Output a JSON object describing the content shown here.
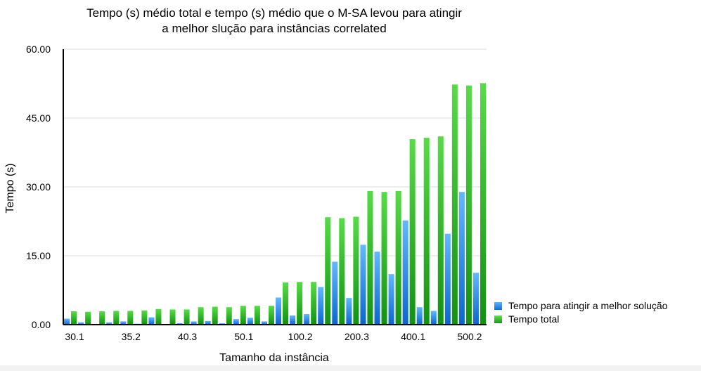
{
  "chart_data": {
    "type": "bar",
    "title_lines": [
      "Tempo (s) médio total e tempo (s) médio que o M-SA levou para atingir",
      "a melhor slução para instâncias correlated"
    ],
    "xlabel": "Tamanho da instância",
    "ylabel": "Tempo (s)",
    "ylim": [
      0,
      60
    ],
    "yticks": [
      "0.00",
      "15.00",
      "30.00",
      "45.00",
      "60.00"
    ],
    "xtick_labels": [
      {
        "label": "30.1",
        "index": 0
      },
      {
        "label": "35.2",
        "index": 4
      },
      {
        "label": "40.3",
        "index": 8
      },
      {
        "label": "50.1",
        "index": 12
      },
      {
        "label": "100.2",
        "index": 16
      },
      {
        "label": "200.3",
        "index": 20
      },
      {
        "label": "400.1",
        "index": 24
      },
      {
        "label": "500.2",
        "index": 28
      }
    ],
    "n_categories": 30,
    "grid": true,
    "legend_position": "bottom-right",
    "series": [
      {
        "name": "Tempo para atingir a melhor solução",
        "color": "#1a7fe8",
        "values": [
          1.3,
          0.5,
          0.0,
          0.5,
          0.7,
          0.2,
          1.6,
          0.0,
          0.3,
          0.7,
          0.8,
          0.3,
          1.2,
          1.5,
          0.7,
          5.9,
          2.0,
          2.3,
          8.2,
          13.7,
          5.8,
          17.4,
          15.9,
          11.0,
          22.7,
          3.8,
          3.0,
          19.8,
          28.9,
          11.3
        ]
      },
      {
        "name": "Tempo total",
        "color": "#22b322",
        "values": [
          2.9,
          2.8,
          2.9,
          3.0,
          3.0,
          3.1,
          3.4,
          3.3,
          3.3,
          3.8,
          3.9,
          3.8,
          4.1,
          4.1,
          4.1,
          9.2,
          9.3,
          9.3,
          23.4,
          23.2,
          23.5,
          29.1,
          28.9,
          29.1,
          40.4,
          40.7,
          41.0,
          52.3,
          52.1,
          52.6
        ]
      }
    ]
  }
}
